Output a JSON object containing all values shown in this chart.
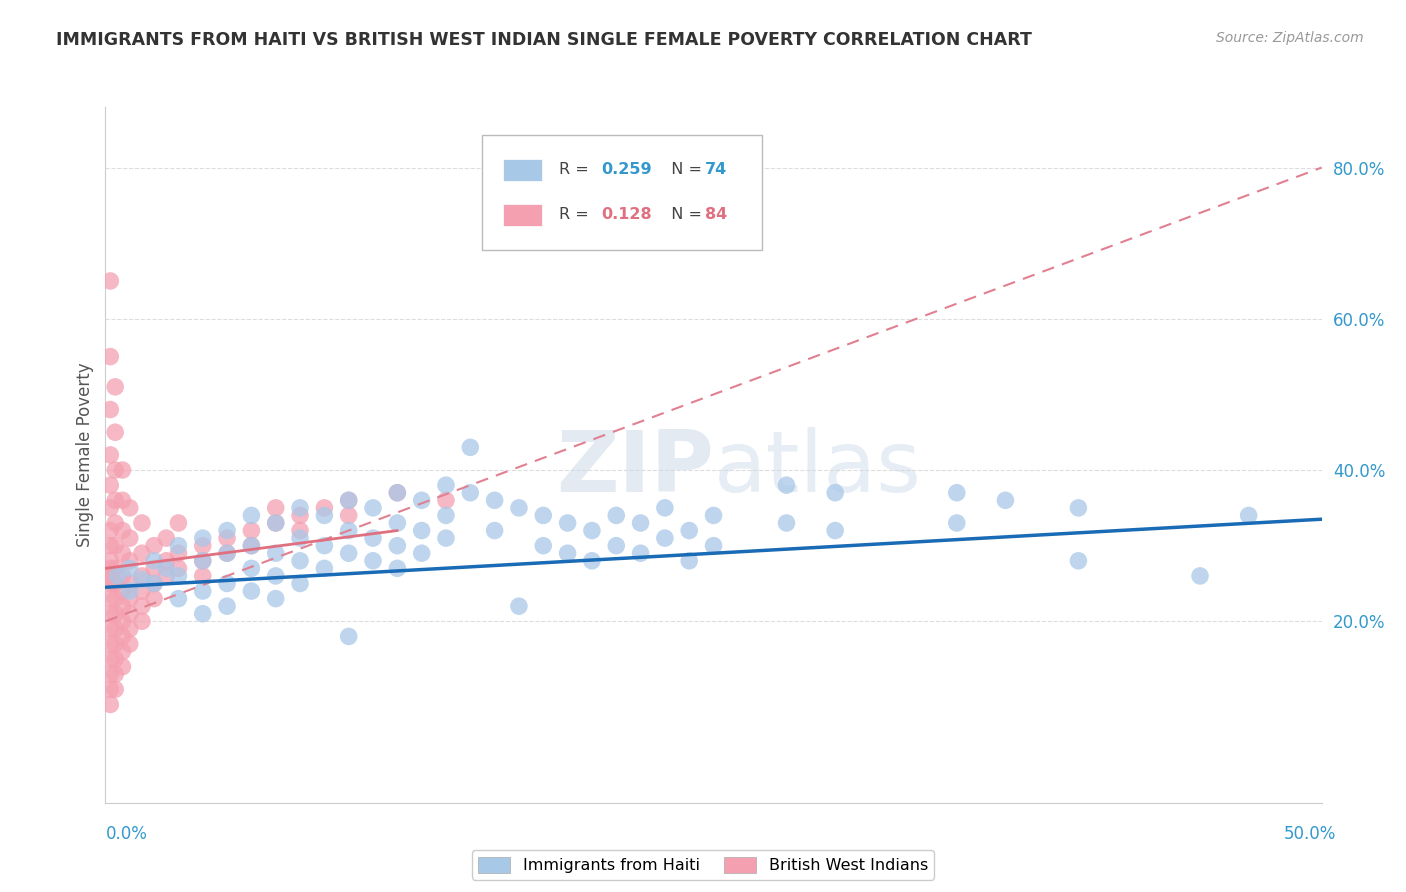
{
  "title": "IMMIGRANTS FROM HAITI VS BRITISH WEST INDIAN SINGLE FEMALE POVERTY CORRELATION CHART",
  "source": "Source: ZipAtlas.com",
  "ylabel": "Single Female Poverty",
  "y_ticks_right": [
    "20.0%",
    "40.0%",
    "60.0%",
    "80.0%"
  ],
  "y_ticks_right_vals": [
    0.2,
    0.4,
    0.6,
    0.8
  ],
  "xlim": [
    0.0,
    0.5
  ],
  "ylim": [
    -0.04,
    0.88
  ],
  "blue_color": "#a8c8e8",
  "pink_color": "#f4a0b0",
  "blue_line_color": "#1a6bb5",
  "pink_line_color": "#e07080",
  "pink_line_dash_color": "#d08090",
  "watermark_color": "#d8e4f0",
  "blue_dots": [
    [
      0.005,
      0.26
    ],
    [
      0.01,
      0.27
    ],
    [
      0.01,
      0.24
    ],
    [
      0.015,
      0.255
    ],
    [
      0.02,
      0.28
    ],
    [
      0.02,
      0.25
    ],
    [
      0.025,
      0.27
    ],
    [
      0.03,
      0.3
    ],
    [
      0.03,
      0.26
    ],
    [
      0.03,
      0.23
    ],
    [
      0.04,
      0.31
    ],
    [
      0.04,
      0.28
    ],
    [
      0.04,
      0.24
    ],
    [
      0.04,
      0.21
    ],
    [
      0.05,
      0.32
    ],
    [
      0.05,
      0.29
    ],
    [
      0.05,
      0.25
    ],
    [
      0.05,
      0.22
    ],
    [
      0.06,
      0.34
    ],
    [
      0.06,
      0.3
    ],
    [
      0.06,
      0.27
    ],
    [
      0.06,
      0.24
    ],
    [
      0.07,
      0.33
    ],
    [
      0.07,
      0.29
    ],
    [
      0.07,
      0.26
    ],
    [
      0.07,
      0.23
    ],
    [
      0.08,
      0.35
    ],
    [
      0.08,
      0.31
    ],
    [
      0.08,
      0.28
    ],
    [
      0.08,
      0.25
    ],
    [
      0.09,
      0.34
    ],
    [
      0.09,
      0.3
    ],
    [
      0.09,
      0.27
    ],
    [
      0.1,
      0.36
    ],
    [
      0.1,
      0.32
    ],
    [
      0.1,
      0.29
    ],
    [
      0.1,
      0.18
    ],
    [
      0.11,
      0.35
    ],
    [
      0.11,
      0.31
    ],
    [
      0.11,
      0.28
    ],
    [
      0.12,
      0.37
    ],
    [
      0.12,
      0.33
    ],
    [
      0.12,
      0.3
    ],
    [
      0.12,
      0.27
    ],
    [
      0.13,
      0.36
    ],
    [
      0.13,
      0.32
    ],
    [
      0.13,
      0.29
    ],
    [
      0.14,
      0.38
    ],
    [
      0.14,
      0.34
    ],
    [
      0.14,
      0.31
    ],
    [
      0.15,
      0.43
    ],
    [
      0.15,
      0.37
    ],
    [
      0.16,
      0.36
    ],
    [
      0.16,
      0.32
    ],
    [
      0.17,
      0.35
    ],
    [
      0.17,
      0.22
    ],
    [
      0.18,
      0.34
    ],
    [
      0.18,
      0.3
    ],
    [
      0.19,
      0.33
    ],
    [
      0.19,
      0.29
    ],
    [
      0.2,
      0.32
    ],
    [
      0.2,
      0.28
    ],
    [
      0.21,
      0.34
    ],
    [
      0.21,
      0.3
    ],
    [
      0.22,
      0.33
    ],
    [
      0.22,
      0.29
    ],
    [
      0.23,
      0.35
    ],
    [
      0.23,
      0.31
    ],
    [
      0.24,
      0.32
    ],
    [
      0.24,
      0.28
    ],
    [
      0.25,
      0.34
    ],
    [
      0.25,
      0.3
    ],
    [
      0.28,
      0.33
    ],
    [
      0.28,
      0.38
    ],
    [
      0.3,
      0.32
    ],
    [
      0.3,
      0.37
    ],
    [
      0.35,
      0.37
    ],
    [
      0.35,
      0.33
    ],
    [
      0.37,
      0.36
    ],
    [
      0.4,
      0.35
    ],
    [
      0.4,
      0.28
    ],
    [
      0.45,
      0.26
    ],
    [
      0.47,
      0.34
    ]
  ],
  "pink_dots": [
    [
      0.002,
      0.26
    ],
    [
      0.002,
      0.27
    ],
    [
      0.002,
      0.28
    ],
    [
      0.002,
      0.25
    ],
    [
      0.002,
      0.23
    ],
    [
      0.002,
      0.21
    ],
    [
      0.002,
      0.19
    ],
    [
      0.002,
      0.17
    ],
    [
      0.002,
      0.15
    ],
    [
      0.002,
      0.13
    ],
    [
      0.002,
      0.11
    ],
    [
      0.002,
      0.09
    ],
    [
      0.002,
      0.3
    ],
    [
      0.002,
      0.32
    ],
    [
      0.002,
      0.35
    ],
    [
      0.002,
      0.38
    ],
    [
      0.002,
      0.42
    ],
    [
      0.002,
      0.48
    ],
    [
      0.002,
      0.55
    ],
    [
      0.002,
      0.65
    ],
    [
      0.004,
      0.27
    ],
    [
      0.004,
      0.25
    ],
    [
      0.004,
      0.23
    ],
    [
      0.004,
      0.21
    ],
    [
      0.004,
      0.19
    ],
    [
      0.004,
      0.17
    ],
    [
      0.004,
      0.15
    ],
    [
      0.004,
      0.13
    ],
    [
      0.004,
      0.11
    ],
    [
      0.004,
      0.3
    ],
    [
      0.004,
      0.33
    ],
    [
      0.004,
      0.36
    ],
    [
      0.004,
      0.4
    ],
    [
      0.004,
      0.45
    ],
    [
      0.004,
      0.51
    ],
    [
      0.007,
      0.26
    ],
    [
      0.007,
      0.24
    ],
    [
      0.007,
      0.22
    ],
    [
      0.007,
      0.2
    ],
    [
      0.007,
      0.18
    ],
    [
      0.007,
      0.16
    ],
    [
      0.007,
      0.14
    ],
    [
      0.007,
      0.29
    ],
    [
      0.007,
      0.32
    ],
    [
      0.007,
      0.36
    ],
    [
      0.007,
      0.4
    ],
    [
      0.01,
      0.25
    ],
    [
      0.01,
      0.23
    ],
    [
      0.01,
      0.21
    ],
    [
      0.01,
      0.19
    ],
    [
      0.01,
      0.17
    ],
    [
      0.01,
      0.28
    ],
    [
      0.01,
      0.31
    ],
    [
      0.01,
      0.35
    ],
    [
      0.015,
      0.26
    ],
    [
      0.015,
      0.24
    ],
    [
      0.015,
      0.22
    ],
    [
      0.015,
      0.2
    ],
    [
      0.015,
      0.29
    ],
    [
      0.015,
      0.33
    ],
    [
      0.02,
      0.27
    ],
    [
      0.02,
      0.25
    ],
    [
      0.02,
      0.23
    ],
    [
      0.02,
      0.3
    ],
    [
      0.025,
      0.28
    ],
    [
      0.025,
      0.26
    ],
    [
      0.025,
      0.31
    ],
    [
      0.03,
      0.29
    ],
    [
      0.03,
      0.27
    ],
    [
      0.03,
      0.33
    ],
    [
      0.04,
      0.3
    ],
    [
      0.04,
      0.28
    ],
    [
      0.04,
      0.26
    ],
    [
      0.05,
      0.31
    ],
    [
      0.05,
      0.29
    ],
    [
      0.06,
      0.32
    ],
    [
      0.06,
      0.3
    ],
    [
      0.07,
      0.33
    ],
    [
      0.07,
      0.35
    ],
    [
      0.08,
      0.34
    ],
    [
      0.08,
      0.32
    ],
    [
      0.09,
      0.35
    ],
    [
      0.1,
      0.36
    ],
    [
      0.1,
      0.34
    ],
    [
      0.12,
      0.37
    ],
    [
      0.14,
      0.36
    ]
  ],
  "blue_trend": [
    0.0,
    0.5,
    0.245,
    0.335
  ],
  "pink_trend_solid": [
    0.0,
    0.12,
    0.27,
    0.32
  ],
  "pink_trend_dashed": [
    0.0,
    0.5,
    0.2,
    0.8
  ]
}
